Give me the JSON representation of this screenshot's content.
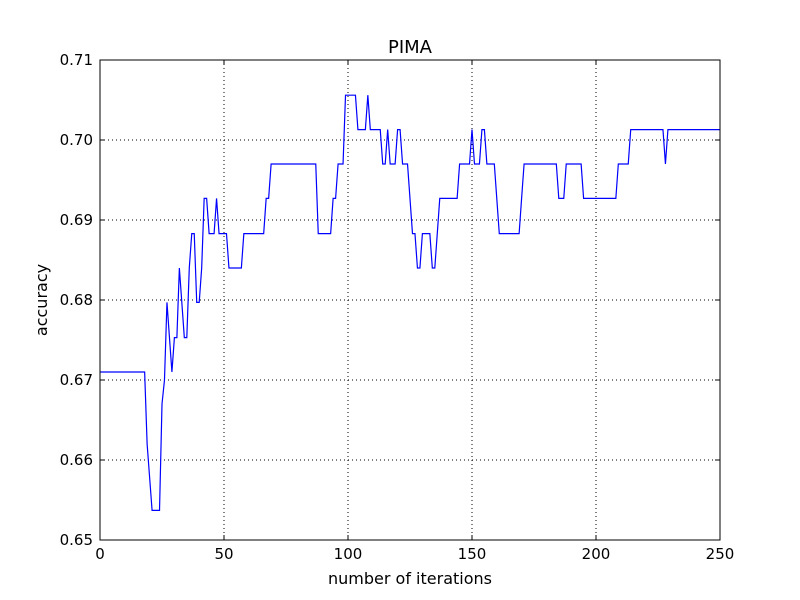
{
  "chart_data": {
    "type": "line",
    "title": "PIMA",
    "xlabel": "number of iterations",
    "ylabel": "accuracy",
    "xlim": [
      0,
      250
    ],
    "ylim": [
      0.65,
      0.71
    ],
    "x_ticks": [
      "0",
      "50",
      "100",
      "150",
      "200",
      "250"
    ],
    "y_ticks": [
      "0.65",
      "0.66",
      "0.67",
      "0.68",
      "0.69",
      "0.70",
      "0.71"
    ],
    "grid": true,
    "grid_style": "dotted",
    "line_color": "#0000ff",
    "series": [
      {
        "points": [
          [
            0,
            0.671
          ],
          [
            18,
            0.671
          ],
          [
            19,
            0.662
          ],
          [
            21,
            0.6537
          ],
          [
            24,
            0.6537
          ],
          [
            25,
            0.667
          ],
          [
            26,
            0.67
          ],
          [
            27,
            0.6797
          ],
          [
            29,
            0.671
          ],
          [
            30,
            0.6753
          ],
          [
            31,
            0.6753
          ],
          [
            32,
            0.684
          ],
          [
            34,
            0.6753
          ],
          [
            35,
            0.6753
          ],
          [
            36,
            0.684
          ],
          [
            37,
            0.6883
          ],
          [
            38,
            0.6883
          ],
          [
            39,
            0.6797
          ],
          [
            40,
            0.6797
          ],
          [
            41,
            0.684
          ],
          [
            42,
            0.6927
          ],
          [
            43,
            0.6927
          ],
          [
            44,
            0.6883
          ],
          [
            46,
            0.6883
          ],
          [
            47,
            0.6927
          ],
          [
            48,
            0.6883
          ],
          [
            51,
            0.6883
          ],
          [
            52,
            0.684
          ],
          [
            57,
            0.684
          ],
          [
            58,
            0.6883
          ],
          [
            66,
            0.6883
          ],
          [
            67,
            0.6927
          ],
          [
            68,
            0.6927
          ],
          [
            69,
            0.697
          ],
          [
            87,
            0.697
          ],
          [
            88,
            0.6883
          ],
          [
            93,
            0.6883
          ],
          [
            94,
            0.6927
          ],
          [
            95,
            0.6927
          ],
          [
            96,
            0.697
          ],
          [
            98,
            0.697
          ],
          [
            99,
            0.7056
          ],
          [
            103,
            0.7056
          ],
          [
            104,
            0.7013
          ],
          [
            107,
            0.7013
          ],
          [
            108,
            0.7056
          ],
          [
            109,
            0.7013
          ],
          [
            113,
            0.7013
          ],
          [
            114,
            0.697
          ],
          [
            115,
            0.697
          ],
          [
            116,
            0.7013
          ],
          [
            117,
            0.697
          ],
          [
            119,
            0.697
          ],
          [
            120,
            0.7013
          ],
          [
            121,
            0.7013
          ],
          [
            122,
            0.697
          ],
          [
            124,
            0.697
          ],
          [
            126,
            0.6883
          ],
          [
            127,
            0.6883
          ],
          [
            128,
            0.684
          ],
          [
            129,
            0.684
          ],
          [
            130,
            0.6883
          ],
          [
            133,
            0.6883
          ],
          [
            134,
            0.684
          ],
          [
            135,
            0.684
          ],
          [
            136,
            0.6883
          ],
          [
            137,
            0.6927
          ],
          [
            144,
            0.6927
          ],
          [
            145,
            0.697
          ],
          [
            149,
            0.697
          ],
          [
            150,
            0.7013
          ],
          [
            151,
            0.697
          ],
          [
            153,
            0.697
          ],
          [
            154,
            0.7013
          ],
          [
            155,
            0.7013
          ],
          [
            156,
            0.697
          ],
          [
            159,
            0.697
          ],
          [
            161,
            0.6883
          ],
          [
            169,
            0.6883
          ],
          [
            170,
            0.6927
          ],
          [
            171,
            0.697
          ],
          [
            184,
            0.697
          ],
          [
            185,
            0.6927
          ],
          [
            187,
            0.6927
          ],
          [
            188,
            0.697
          ],
          [
            194,
            0.697
          ],
          [
            195,
            0.6927
          ],
          [
            208,
            0.6927
          ],
          [
            209,
            0.697
          ],
          [
            213,
            0.697
          ],
          [
            214,
            0.7013
          ],
          [
            227,
            0.7013
          ],
          [
            228,
            0.697
          ],
          [
            229,
            0.7013
          ],
          [
            250,
            0.7013
          ]
        ]
      }
    ]
  }
}
